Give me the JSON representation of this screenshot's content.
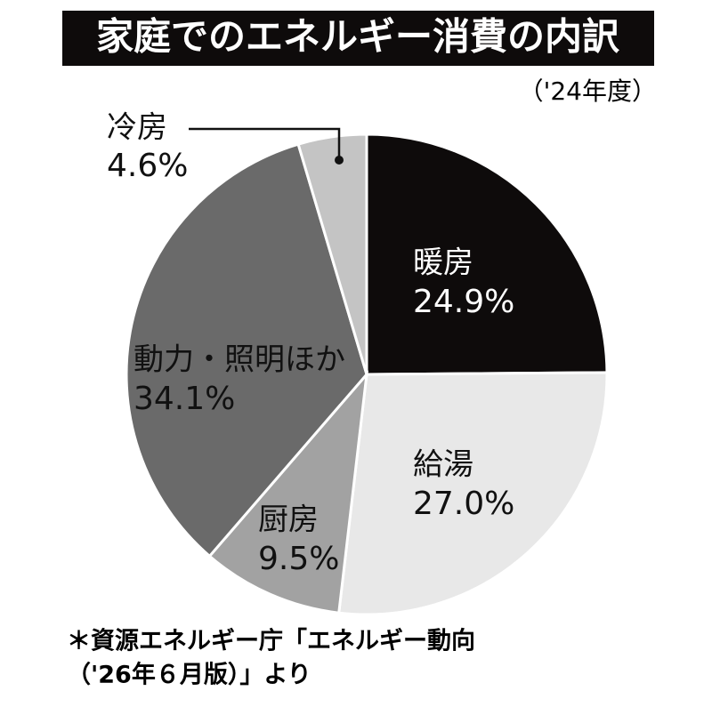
{
  "chart_data": {
    "type": "pie",
    "title": "家庭でのエネルギー消費の内訳",
    "subtitle": "（'24年度）",
    "categories": [
      "暖房",
      "給湯",
      "厨房",
      "動力・照明ほか",
      "冷房"
    ],
    "values": [
      24.9,
      27.0,
      9.5,
      34.1,
      4.6
    ],
    "value_labels": [
      "24.9%",
      "27.0%",
      "9.5%",
      "34.1%",
      "4.6%"
    ],
    "colors": [
      "#0e0b0b",
      "#e8e8e8",
      "#a2a2a2",
      "#6a6a6a",
      "#c4c4c4"
    ],
    "source": [
      "＊資源エネルギー庁「エネルギー動向",
      "（'26年６月版）」より"
    ]
  }
}
